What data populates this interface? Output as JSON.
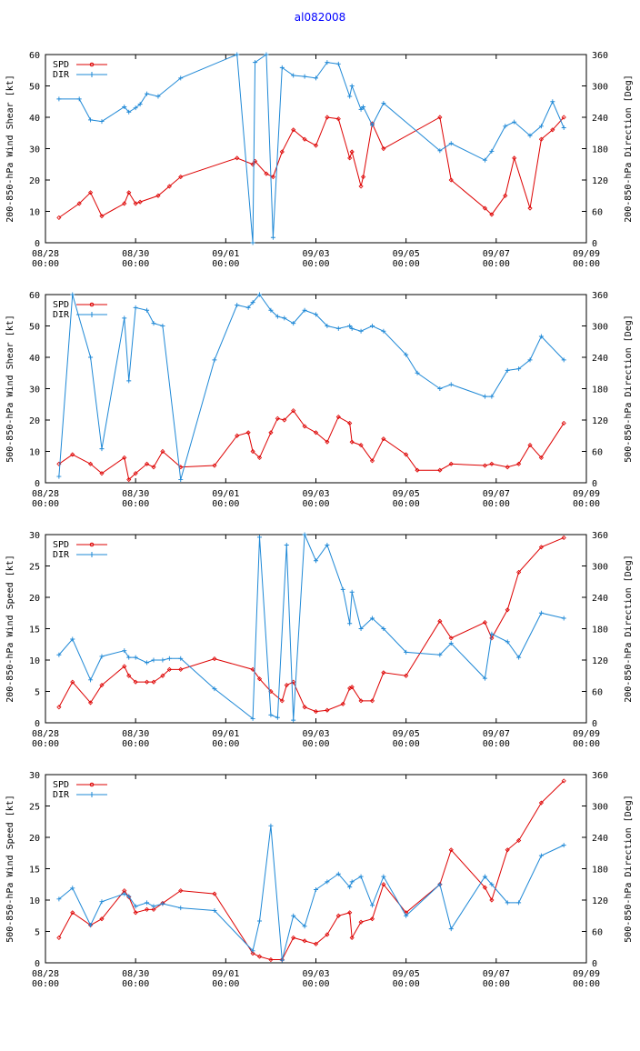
{
  "title": "al082008",
  "colors": {
    "spd": "#dd0000",
    "dir": "#1e88d6",
    "axis": "#000000"
  },
  "chart_data": [
    {
      "type": "line",
      "ylabel": "200-850-hPa Wind Shear [kt]",
      "y2label": "200-850-hPa Direction [Deg]",
      "ylim": [
        0,
        60
      ],
      "y2lim": [
        0,
        360
      ],
      "yticks": [
        "0",
        "10",
        "20",
        "30",
        "40",
        "50",
        "60"
      ],
      "y2ticks": [
        "0",
        "60",
        "120",
        "180",
        "240",
        "300",
        "360"
      ],
      "xlim": [
        0,
        12
      ],
      "xticks": [
        "08/28\n00:00",
        "08/30\n00:00",
        "09/01\n00:00",
        "09/03\n00:00",
        "09/05\n00:00",
        "09/07\n00:00",
        "09/09\n00:00"
      ],
      "legend": [
        "SPD",
        "DIR"
      ],
      "series": [
        {
          "name": "SPD",
          "axis": "left",
          "x": [
            0.3,
            0.75,
            1.0,
            1.25,
            1.75,
            1.85,
            2.0,
            2.1,
            2.5,
            2.75,
            3.0,
            4.25,
            4.6,
            4.65,
            4.9,
            5.05,
            5.25,
            5.5,
            5.75,
            6.0,
            6.25,
            6.5,
            6.75,
            6.8,
            7.0,
            7.05,
            7.25,
            7.5,
            8.75,
            9.0,
            9.75,
            9.9,
            10.2,
            10.4,
            10.75,
            11.0,
            11.25,
            11.5
          ],
          "values": [
            8,
            12.5,
            16,
            8.5,
            12.5,
            16,
            12.5,
            13,
            15,
            18,
            21,
            27,
            25,
            26,
            22,
            21,
            29,
            36,
            33,
            31,
            40,
            39.5,
            27,
            29,
            18,
            21,
            38,
            30,
            40,
            20,
            11,
            9,
            15,
            27,
            11,
            33,
            36,
            40
          ]
        },
        {
          "name": "DIR",
          "axis": "right",
          "x": [
            0.3,
            0.75,
            1.0,
            1.25,
            1.75,
            1.85,
            2.0,
            2.1,
            2.25,
            2.5,
            3.0,
            4.25,
            4.6,
            4.65,
            4.9,
            5.05,
            5.25,
            5.5,
            5.75,
            6.0,
            6.25,
            6.5,
            6.75,
            6.8,
            7.0,
            7.05,
            7.25,
            7.5,
            8.75,
            9.0,
            9.75,
            9.9,
            10.2,
            10.4,
            10.75,
            11.0,
            11.25,
            11.5
          ],
          "values": [
            275,
            275,
            235,
            232,
            260,
            250,
            258,
            265,
            285,
            280,
            315,
            360,
            0,
            345,
            360,
            10,
            335,
            320,
            318,
            315,
            345,
            342,
            280,
            300,
            255,
            260,
            225,
            267,
            176,
            190,
            158,
            175,
            223,
            231,
            205,
            223,
            270,
            220
          ]
        }
      ]
    },
    {
      "type": "line",
      "ylabel": "500-850-hPa Wind Shear [kt]",
      "y2label": "500-850-hPa Direction [Deg]",
      "ylim": [
        0,
        60
      ],
      "y2lim": [
        0,
        360
      ],
      "yticks": [
        "0",
        "10",
        "20",
        "30",
        "40",
        "50",
        "60"
      ],
      "y2ticks": [
        "0",
        "60",
        "120",
        "180",
        "240",
        "300",
        "360"
      ],
      "xlim": [
        0,
        12
      ],
      "xticks": [
        "08/28\n00:00",
        "08/30\n00:00",
        "09/01\n00:00",
        "09/03\n00:00",
        "09/05\n00:00",
        "09/07\n00:00",
        "09/09\n00:00"
      ],
      "legend": [
        "SPD",
        "DIR"
      ],
      "series": [
        {
          "name": "SPD",
          "axis": "left",
          "x": [
            0.3,
            0.6,
            1.0,
            1.25,
            1.75,
            1.85,
            2.0,
            2.25,
            2.4,
            2.6,
            3.0,
            3.75,
            4.25,
            4.5,
            4.6,
            4.75,
            5.0,
            5.15,
            5.3,
            5.5,
            5.75,
            6.0,
            6.25,
            6.5,
            6.75,
            6.8,
            7.0,
            7.25,
            7.5,
            8.0,
            8.25,
            8.75,
            9.0,
            9.75,
            9.9,
            10.25,
            10.5,
            10.75,
            11.0,
            11.5
          ],
          "values": [
            6,
            9,
            6,
            3,
            8,
            1,
            3,
            6,
            5,
            10,
            5,
            5.5,
            15,
            16,
            10,
            8,
            16,
            20.5,
            20,
            23,
            18,
            16,
            13,
            21,
            19,
            13,
            12,
            7,
            14,
            9,
            4,
            4,
            6,
            5.5,
            6,
            5,
            6,
            12,
            8,
            19
          ]
        },
        {
          "name": "DIR",
          "axis": "right",
          "x": [
            0.3,
            0.6,
            1.0,
            1.25,
            1.75,
            1.85,
            2.0,
            2.25,
            2.4,
            2.6,
            3.0,
            3.75,
            4.25,
            4.5,
            4.6,
            4.75,
            5.0,
            5.15,
            5.3,
            5.5,
            5.75,
            6.0,
            6.25,
            6.5,
            6.75,
            6.8,
            7.0,
            7.25,
            7.5,
            8.0,
            8.25,
            8.75,
            9.0,
            9.75,
            9.9,
            10.25,
            10.5,
            10.75,
            11.0,
            11.5
          ],
          "values": [
            12,
            360,
            240,
            65,
            315,
            195,
            335,
            330,
            305,
            300,
            6,
            235,
            340,
            335,
            345,
            360,
            330,
            318,
            315,
            305,
            330,
            322,
            300,
            295,
            300,
            295,
            290,
            300,
            290,
            245,
            210,
            180,
            188,
            165,
            165,
            215,
            218,
            235,
            280,
            235
          ]
        }
      ]
    },
    {
      "type": "line",
      "ylabel": "200-850-hPa Wind Speed [kt]",
      "y2label": "200-850-hPa Direction [Deg]",
      "ylim": [
        0,
        30
      ],
      "y2lim": [
        0,
        360
      ],
      "yticks": [
        "0",
        "5",
        "10",
        "15",
        "20",
        "25",
        "30"
      ],
      "y2ticks": [
        "0",
        "60",
        "120",
        "180",
        "240",
        "300",
        "360"
      ],
      "xlim": [
        0,
        12
      ],
      "xticks": [
        "08/28\n00:00",
        "08/30\n00:00",
        "09/01\n00:00",
        "09/03\n00:00",
        "09/05\n00:00",
        "09/07\n00:00",
        "09/09\n00:00"
      ],
      "legend": [
        "SPD",
        "DIR"
      ],
      "series": [
        {
          "name": "SPD",
          "axis": "left",
          "x": [
            0.3,
            0.6,
            1.0,
            1.25,
            1.75,
            1.85,
            2.0,
            2.25,
            2.4,
            2.6,
            2.75,
            3.0,
            3.75,
            4.6,
            4.75,
            5.0,
            5.25,
            5.35,
            5.5,
            5.75,
            6.0,
            6.25,
            6.6,
            6.75,
            6.8,
            7.0,
            7.25,
            7.5,
            8.0,
            8.75,
            9.0,
            9.75,
            9.9,
            10.25,
            10.5,
            11.0,
            11.5
          ],
          "values": [
            2.5,
            6.5,
            3.2,
            6,
            9,
            7.5,
            6.5,
            6.5,
            6.5,
            7.5,
            8.5,
            8.5,
            10.2,
            8.5,
            7,
            5,
            3.5,
            6,
            6.5,
            2.5,
            1.8,
            2,
            3,
            5.5,
            5.7,
            3.5,
            3.5,
            8,
            7.5,
            16.2,
            13.5,
            16,
            13.5,
            18,
            24,
            28,
            29.5
          ]
        },
        {
          "name": "DIR",
          "axis": "right",
          "x": [
            0.3,
            0.6,
            1.0,
            1.25,
            1.75,
            1.85,
            2.0,
            2.25,
            2.4,
            2.6,
            2.75,
            3.0,
            3.75,
            4.6,
            4.75,
            5.0,
            5.15,
            5.35,
            5.5,
            5.75,
            6.0,
            6.25,
            6.6,
            6.75,
            6.8,
            7.0,
            7.25,
            7.5,
            8.0,
            8.75,
            9.0,
            9.75,
            9.9,
            10.25,
            10.5,
            11.0,
            11.5
          ],
          "values": [
            130,
            160,
            82,
            127,
            138,
            125,
            125,
            115,
            120,
            120,
            123,
            123,
            65,
            8,
            355,
            15,
            10,
            340,
            5,
            360,
            310,
            340,
            255,
            190,
            250,
            180,
            200,
            180,
            135,
            130,
            152,
            85,
            170,
            155,
            125,
            210,
            200
          ]
        }
      ]
    },
    {
      "type": "line",
      "ylabel": "500-850-hPa Wind Speed [kt]",
      "y2label": "500-850-hPa Direction [Deg]",
      "ylim": [
        0,
        30
      ],
      "y2lim": [
        0,
        360
      ],
      "yticks": [
        "0",
        "5",
        "10",
        "15",
        "20",
        "25",
        "30"
      ],
      "y2ticks": [
        "0",
        "60",
        "120",
        "180",
        "240",
        "300",
        "360"
      ],
      "xlim": [
        0,
        12
      ],
      "xticks": [
        "08/28\n00:00",
        "08/30\n00:00",
        "09/01\n00:00",
        "09/03\n00:00",
        "09/05\n00:00",
        "09/07\n00:00",
        "09/09\n00:00"
      ],
      "legend": [
        "SPD",
        "DIR"
      ],
      "series": [
        {
          "name": "SPD",
          "axis": "left",
          "x": [
            0.3,
            0.6,
            1.0,
            1.25,
            1.75,
            1.85,
            2.0,
            2.25,
            2.4,
            2.6,
            3.0,
            3.75,
            4.6,
            4.75,
            5.0,
            5.25,
            5.5,
            5.75,
            6.0,
            6.25,
            6.5,
            6.75,
            6.8,
            7.0,
            7.25,
            7.5,
            8.0,
            8.75,
            9.0,
            9.75,
            9.9,
            10.25,
            10.5,
            11.0,
            11.5
          ],
          "values": [
            4,
            8,
            6,
            7,
            11.5,
            10.5,
            8,
            8.5,
            8.5,
            9.5,
            11.5,
            11,
            1.5,
            1,
            0.5,
            0.5,
            4,
            3.5,
            3,
            4.5,
            7.5,
            8,
            4,
            6.5,
            7,
            12.5,
            8,
            12.5,
            18,
            12,
            10,
            18,
            19.5,
            25.5,
            29
          ]
        },
        {
          "name": "DIR",
          "axis": "right",
          "x": [
            0.3,
            0.6,
            1.0,
            1.25,
            1.75,
            1.85,
            2.0,
            2.25,
            2.4,
            2.6,
            3.0,
            3.75,
            4.6,
            4.75,
            5.0,
            5.25,
            5.5,
            5.75,
            6.0,
            6.25,
            6.5,
            6.75,
            6.8,
            7.0,
            7.25,
            7.5,
            8.0,
            8.75,
            9.0,
            9.75,
            9.9,
            10.25,
            10.5,
            11.0,
            11.5
          ],
          "values": [
            122,
            143,
            72,
            117,
            132,
            127,
            108,
            115,
            108,
            113,
            105,
            100,
            23,
            80,
            262,
            5,
            90,
            70,
            140,
            155,
            170,
            145,
            155,
            165,
            110,
            165,
            90,
            150,
            65,
            165,
            150,
            115,
            115,
            205,
            225
          ]
        }
      ]
    }
  ]
}
